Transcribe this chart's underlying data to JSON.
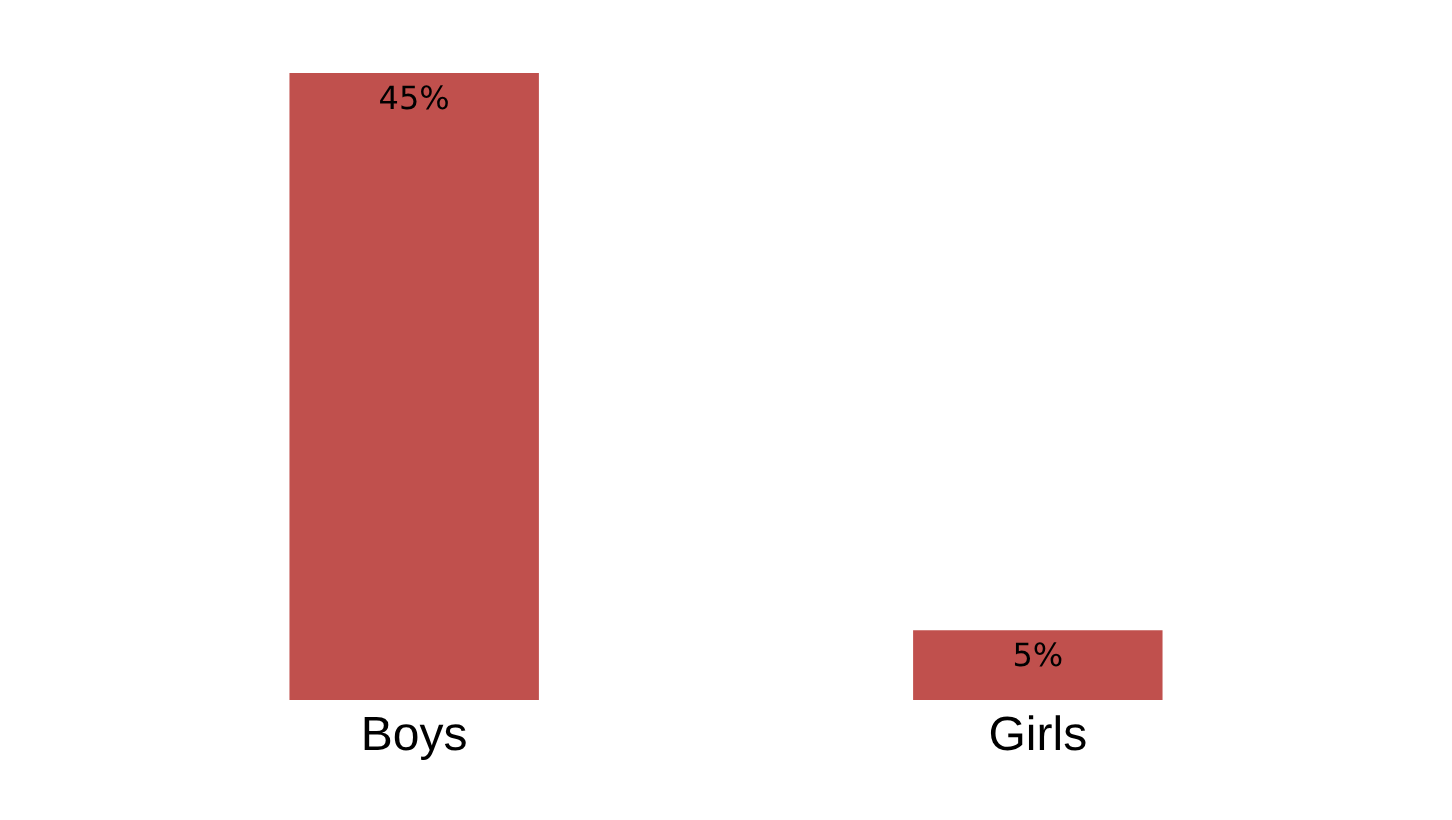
{
  "chart_data": {
    "type": "bar",
    "categories": [
      "Boys",
      "Girls"
    ],
    "values": [
      45,
      5
    ],
    "value_labels": [
      "45%",
      "5%"
    ],
    "color": "#c0504d"
  }
}
